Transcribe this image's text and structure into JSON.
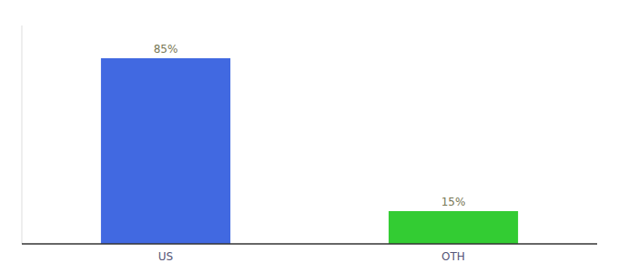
{
  "chart_data": {
    "type": "bar",
    "categories": [
      "US",
      "OTH"
    ],
    "values": [
      85,
      15
    ],
    "value_labels": [
      "85%",
      "15%"
    ],
    "colors": [
      "#4169e1",
      "#33cc33"
    ],
    "ylim": [
      0,
      100
    ],
    "grid": false,
    "data_labels": true,
    "tick_labels": "x"
  }
}
